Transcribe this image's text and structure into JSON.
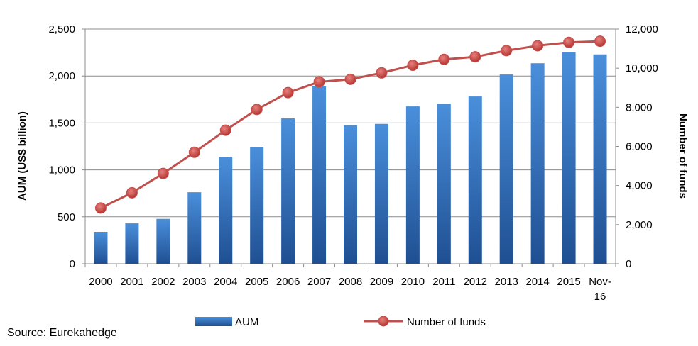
{
  "chart_data": {
    "type": "bar",
    "categories": [
      "2000",
      "2001",
      "2002",
      "2003",
      "2004",
      "2005",
      "2006",
      "2007",
      "2008",
      "2009",
      "2010",
      "2011",
      "2012",
      "2013",
      "2014",
      "2015",
      "Nov-16"
    ],
    "series": [
      {
        "name": "AUM",
        "type": "bar",
        "axis": "left",
        "color": "#2e6eb8",
        "values": [
          340,
          430,
          478,
          762,
          1140,
          1246,
          1548,
          1890,
          1476,
          1490,
          1676,
          1704,
          1782,
          2016,
          2136,
          2252,
          2230
        ]
      },
      {
        "name": "Number of funds",
        "type": "line",
        "axis": "right",
        "color": "#c0504d",
        "values": [
          2850,
          3630,
          4620,
          5700,
          6830,
          7890,
          8750,
          9300,
          9430,
          9760,
          10150,
          10450,
          10580,
          10900,
          11150,
          11320,
          11380
        ]
      }
    ],
    "ylabel": "AUM (US$ billion)",
    "y2label": "Number of funds",
    "ylim": [
      0,
      2500
    ],
    "y2lim": [
      0,
      12000
    ],
    "yticks": [
      "0",
      "500",
      "1,000",
      "1,500",
      "2,000",
      "2,500"
    ],
    "y2ticks": [
      "0",
      "2,000",
      "4,000",
      "6,000",
      "8,000",
      "10,000",
      "12,000"
    ],
    "grid": true,
    "legend": "bottom"
  },
  "source": "Source: Eurekahedge"
}
